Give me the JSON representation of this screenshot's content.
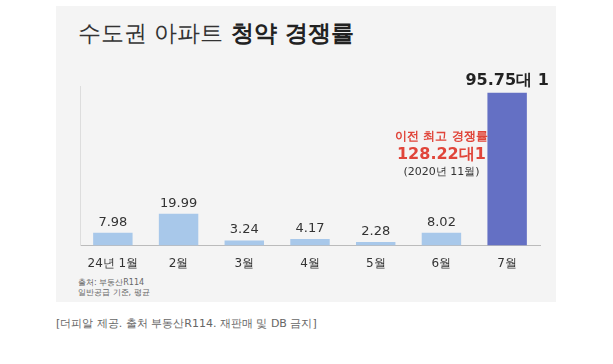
{
  "chart_data": {
    "type": "bar",
    "title": "수도권 아파트 청약 경쟁률",
    "categories": [
      "24년 1월",
      "2월",
      "3월",
      "4월",
      "5월",
      "6월",
      "7월"
    ],
    "values": [
      7.98,
      19.99,
      3.24,
      4.17,
      2.28,
      8.02,
      95.75
    ],
    "value_labels": [
      "7.98",
      "19.99",
      "3.24",
      "4.17",
      "2.28",
      "8.02",
      "95.75대 1"
    ],
    "colors": [
      "#a8c8ea",
      "#a8c8ea",
      "#a8c8ea",
      "#a8c8ea",
      "#a8c8ea",
      "#a8c8ea",
      "#6470c4"
    ],
    "data_labels": true,
    "tick_labels": "x",
    "grid": false,
    "ylim": [
      0,
      100
    ],
    "annotations": [
      "이전 최고 경쟁률",
      "128.22대1",
      "(2020년 11월)"
    ],
    "source": [
      "출처: 부동산R114",
      "일반공급 기준, 평균"
    ]
  },
  "caption": "[더피알 제공. 출처 부동산R114. 재판매 및 DB 금지]"
}
